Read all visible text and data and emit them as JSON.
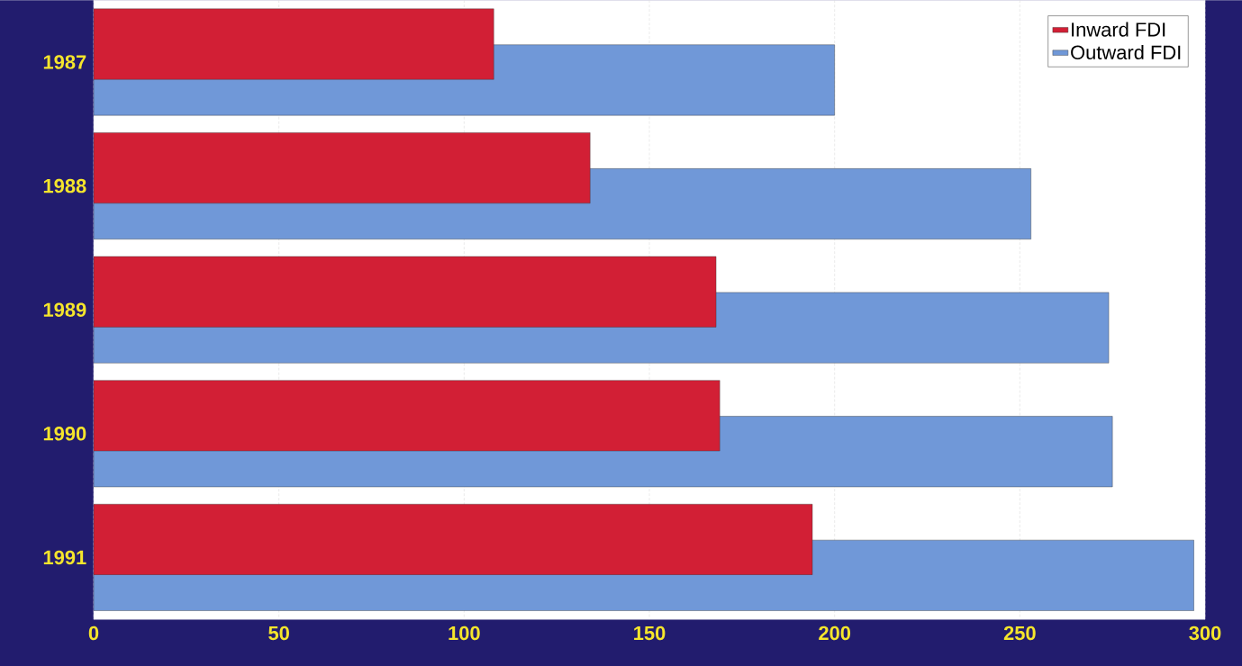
{
  "chart_data": {
    "type": "bar",
    "orientation": "horizontal",
    "categories": [
      "1987",
      "1988",
      "1989",
      "1990",
      "1991"
    ],
    "series": [
      {
        "name": "Inward FDI",
        "color": "#d21f35",
        "values": [
          108,
          134,
          168,
          169,
          194
        ]
      },
      {
        "name": "Outward FDI",
        "color": "#7098d8",
        "values": [
          200,
          253,
          274,
          275,
          297
        ]
      }
    ],
    "xlim": [
      0,
      300
    ],
    "xticks": [
      0,
      50,
      100,
      150,
      200,
      250,
      300
    ],
    "grid": "x",
    "legend": "top right"
  }
}
